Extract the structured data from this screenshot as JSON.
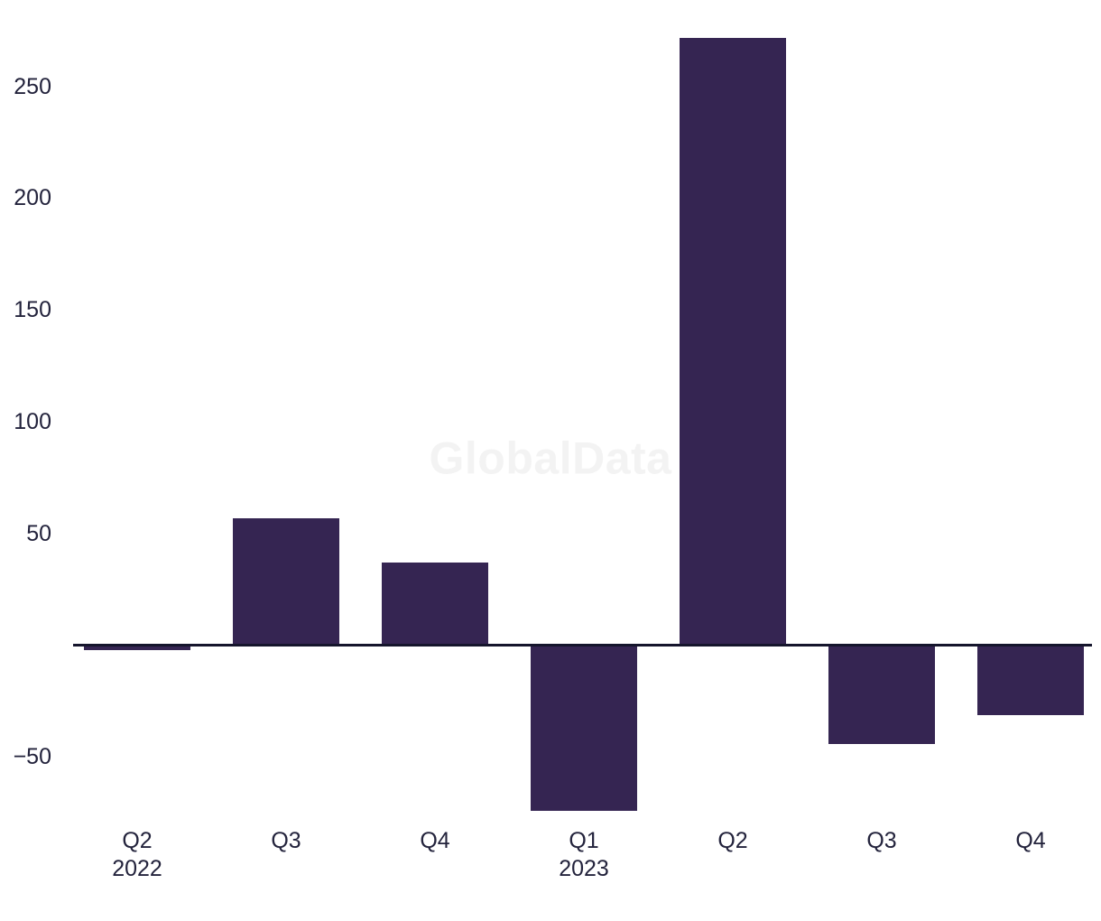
{
  "colors": {
    "bar": "#352552",
    "axis_line": "#15152c",
    "tick_text": "#23233c",
    "watermark": "#f3f3f3",
    "background": "#ffffff"
  },
  "chart_data": {
    "type": "bar",
    "watermark": "GlobalData",
    "categories": [
      "Q2",
      "Q3",
      "Q4",
      "Q1",
      "Q2",
      "Q3",
      "Q4"
    ],
    "category_sublabels": [
      "2022",
      "",
      "",
      "2023",
      "",
      "",
      ""
    ],
    "values": [
      -2,
      57,
      37,
      -74,
      272,
      -44,
      -31
    ],
    "yticks": [
      250,
      200,
      150,
      100,
      50,
      -50
    ],
    "title": "",
    "xlabel": "",
    "ylabel": "",
    "ylim": [
      -85,
      290
    ],
    "grid": false,
    "legend": false,
    "bar_color": "#352552"
  }
}
